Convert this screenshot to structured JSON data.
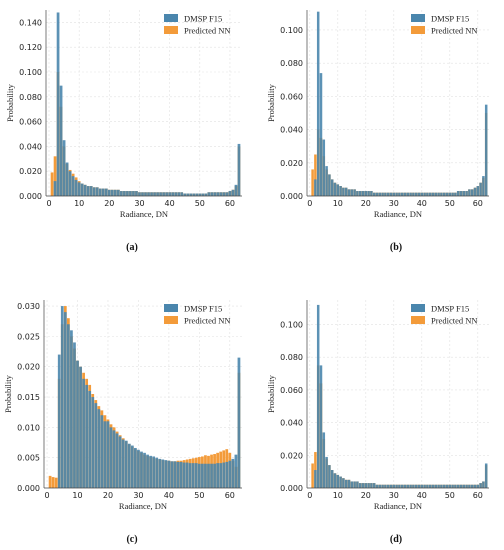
{
  "colors": {
    "series_a": "#4a86ad",
    "series_b": "#f39b3a",
    "overlap": "#4a86ad"
  },
  "chart_data": [
    {
      "panel": "a",
      "caption": "(a)",
      "type": "bar",
      "xlabel": "Radiance, DN",
      "ylabel": "Probability",
      "xlim": [
        -1,
        64
      ],
      "ylim": [
        0,
        0.15
      ],
      "yticks": [
        "0.000",
        "0.020",
        "0.040",
        "0.060",
        "0.080",
        "0.100",
        "0.120",
        "0.140"
      ],
      "ytick_values": [
        0,
        0.02,
        0.04,
        0.06,
        0.08,
        0.1,
        0.12,
        0.14
      ],
      "xticks": [
        0,
        10,
        20,
        30,
        40,
        50,
        60
      ],
      "legend_position": "top-right",
      "series": [
        {
          "name": "DMSP F15",
          "values": [
            0,
            0,
            0.012,
            0.148,
            0.089,
            0.045,
            0.027,
            0.02,
            0.016,
            0.013,
            0.011,
            0.01,
            0.009,
            0.008,
            0.008,
            0.007,
            0.007,
            0.006,
            0.006,
            0.006,
            0.005,
            0.005,
            0.005,
            0.005,
            0.004,
            0.004,
            0.004,
            0.004,
            0.004,
            0.004,
            0.003,
            0.003,
            0.003,
            0.003,
            0.003,
            0.003,
            0.003,
            0.003,
            0.003,
            0.003,
            0.003,
            0.003,
            0.003,
            0.003,
            0.003,
            0.002,
            0.002,
            0.002,
            0.002,
            0.002,
            0.002,
            0.002,
            0.002,
            0.003,
            0.003,
            0.003,
            0.003,
            0.003,
            0.003,
            0.003,
            0.004,
            0.005,
            0.009,
            0.042
          ]
        },
        {
          "name": "Predicted NN",
          "values": [
            0,
            0.019,
            0.032,
            0.1,
            0.072,
            0.04,
            0.026,
            0.021,
            0.018,
            0.015,
            0.012,
            0.01,
            0.009,
            0.008,
            0.008,
            0.007,
            0.007,
            0.006,
            0.006,
            0.006,
            0.005,
            0.005,
            0.005,
            0.005,
            0.004,
            0.004,
            0.004,
            0.004,
            0.004,
            0.004,
            0.003,
            0.003,
            0.003,
            0.003,
            0.003,
            0.003,
            0.003,
            0.003,
            0.003,
            0.003,
            0.003,
            0.003,
            0.003,
            0.003,
            0.003,
            0.002,
            0.002,
            0.002,
            0.002,
            0.002,
            0.002,
            0.002,
            0.002,
            0.003,
            0.003,
            0.003,
            0.003,
            0.003,
            0.003,
            0.003,
            0.004,
            0.005,
            0.008,
            0.04
          ]
        }
      ]
    },
    {
      "panel": "b",
      "caption": "(b)",
      "type": "bar",
      "xlabel": "Radiance, DN",
      "ylabel": "Probability",
      "xlim": [
        -1,
        64
      ],
      "ylim": [
        0,
        0.112
      ],
      "yticks": [
        "0.000",
        "0.020",
        "0.040",
        "0.060",
        "0.080",
        "0.100"
      ],
      "ytick_values": [
        0,
        0.02,
        0.04,
        0.06,
        0.08,
        0.1
      ],
      "xticks": [
        0,
        10,
        20,
        30,
        40,
        50,
        60
      ],
      "legend_position": "top-right",
      "series": [
        {
          "name": "DMSP F15",
          "values": [
            0,
            0,
            0.01,
            0.111,
            0.074,
            0.034,
            0.018,
            0.013,
            0.01,
            0.008,
            0.007,
            0.006,
            0.005,
            0.005,
            0.004,
            0.004,
            0.004,
            0.003,
            0.003,
            0.003,
            0.003,
            0.003,
            0.003,
            0.002,
            0.002,
            0.002,
            0.002,
            0.002,
            0.002,
            0.002,
            0.002,
            0.002,
            0.002,
            0.002,
            0.002,
            0.002,
            0.002,
            0.002,
            0.002,
            0.002,
            0.002,
            0.002,
            0.002,
            0.002,
            0.002,
            0.002,
            0.002,
            0.002,
            0.002,
            0.002,
            0.002,
            0.002,
            0.002,
            0.003,
            0.003,
            0.003,
            0.003,
            0.004,
            0.004,
            0.005,
            0.006,
            0.008,
            0.012,
            0.055
          ]
        },
        {
          "name": "Predicted NN",
          "values": [
            0,
            0.016,
            0.025,
            0.04,
            0.035,
            0.024,
            0.016,
            0.013,
            0.01,
            0.008,
            0.007,
            0.006,
            0.005,
            0.005,
            0.004,
            0.004,
            0.004,
            0.003,
            0.003,
            0.003,
            0.003,
            0.003,
            0.003,
            0.002,
            0.002,
            0.002,
            0.002,
            0.002,
            0.002,
            0.002,
            0.002,
            0.002,
            0.002,
            0.002,
            0.002,
            0.002,
            0.002,
            0.002,
            0.002,
            0.002,
            0.002,
            0.002,
            0.002,
            0.002,
            0.002,
            0.002,
            0.002,
            0.002,
            0.002,
            0.002,
            0.002,
            0.002,
            0.002,
            0.003,
            0.003,
            0.003,
            0.003,
            0.004,
            0.004,
            0.005,
            0.006,
            0.008,
            0.011,
            0.05
          ]
        }
      ]
    },
    {
      "panel": "c",
      "caption": "(c)",
      "type": "bar",
      "xlabel": "Radiance, DN",
      "ylabel": "Probability",
      "xlim": [
        -1,
        64
      ],
      "ylim": [
        0,
        0.031
      ],
      "yticks": [
        "0.000",
        "0.005",
        "0.010",
        "0.015",
        "0.020",
        "0.025",
        "0.030"
      ],
      "ytick_values": [
        0,
        0.005,
        0.01,
        0.015,
        0.02,
        0.025,
        0.03
      ],
      "xticks": [
        0,
        10,
        20,
        30,
        40,
        50,
        60
      ],
      "legend_position": "top-right",
      "series": [
        {
          "name": "DMSP F15",
          "values": [
            0,
            0,
            0,
            0,
            0.022,
            0.03,
            0.029,
            0.027,
            0.026,
            0.024,
            0.021,
            0.02,
            0.018,
            0.017,
            0.016,
            0.015,
            0.014,
            0.013,
            0.012,
            0.011,
            0.011,
            0.01,
            0.0095,
            0.009,
            0.0085,
            0.008,
            0.0078,
            0.0073,
            0.007,
            0.0066,
            0.0063,
            0.006,
            0.0058,
            0.0055,
            0.0053,
            0.0052,
            0.005,
            0.0048,
            0.0047,
            0.0046,
            0.0045,
            0.0044,
            0.0044,
            0.0043,
            0.0043,
            0.0042,
            0.0042,
            0.0041,
            0.0041,
            0.0041,
            0.004,
            0.004,
            0.004,
            0.004,
            0.004,
            0.004,
            0.0041,
            0.0041,
            0.0042,
            0.0043,
            0.0045,
            0.0048,
            0.0055,
            0.0215
          ]
        },
        {
          "name": "Predicted NN",
          "values": [
            0,
            0.002,
            0.0018,
            0.0017,
            0.018,
            0.027,
            0.03,
            0.028,
            0.025,
            0.023,
            0.021,
            0.02,
            0.019,
            0.018,
            0.017,
            0.0155,
            0.0145,
            0.0135,
            0.0128,
            0.012,
            0.0113,
            0.0105,
            0.01,
            0.0093,
            0.0087,
            0.0082,
            0.0077,
            0.0072,
            0.0068,
            0.0064,
            0.0061,
            0.0058,
            0.0055,
            0.0053,
            0.0051,
            0.005,
            0.0048,
            0.0047,
            0.0046,
            0.0045,
            0.0045,
            0.0044,
            0.0044,
            0.0045,
            0.0045,
            0.0046,
            0.0047,
            0.0048,
            0.0049,
            0.005,
            0.0051,
            0.0052,
            0.0054,
            0.0053,
            0.0055,
            0.0056,
            0.0058,
            0.006,
            0.0062,
            0.0064,
            0.0058,
            0.0045,
            0.0035,
            0.019
          ]
        }
      ]
    },
    {
      "panel": "d",
      "caption": "(d)",
      "type": "bar",
      "xlabel": "Radiance, DN",
      "ylabel": "Probability",
      "xlim": [
        -1,
        64
      ],
      "ylim": [
        0,
        0.115
      ],
      "yticks": [
        "0.000",
        "0.020",
        "0.040",
        "0.060",
        "0.080",
        "0.100"
      ],
      "ytick_values": [
        0,
        0.02,
        0.04,
        0.06,
        0.08,
        0.1
      ],
      "xticks": [
        0,
        10,
        20,
        30,
        40,
        50,
        60
      ],
      "legend_position": "top-right",
      "series": [
        {
          "name": "DMSP F15",
          "values": [
            0,
            0,
            0.011,
            0.112,
            0.075,
            0.034,
            0.019,
            0.014,
            0.011,
            0.009,
            0.008,
            0.007,
            0.006,
            0.005,
            0.005,
            0.004,
            0.004,
            0.004,
            0.003,
            0.003,
            0.003,
            0.003,
            0.003,
            0.003,
            0.002,
            0.002,
            0.002,
            0.002,
            0.002,
            0.002,
            0.002,
            0.002,
            0.002,
            0.002,
            0.002,
            0.002,
            0.002,
            0.002,
            0.002,
            0.002,
            0.002,
            0.002,
            0.002,
            0.002,
            0.002,
            0.002,
            0.002,
            0.002,
            0.002,
            0.002,
            0.002,
            0.002,
            0.002,
            0.002,
            0.002,
            0.002,
            0.002,
            0.002,
            0.002,
            0.002,
            0.002,
            0.003,
            0.004,
            0.015
          ]
        },
        {
          "name": "Predicted NN",
          "values": [
            0,
            0.015,
            0.022,
            0.075,
            0.064,
            0.03,
            0.018,
            0.014,
            0.011,
            0.009,
            0.008,
            0.007,
            0.006,
            0.005,
            0.005,
            0.004,
            0.004,
            0.004,
            0.003,
            0.003,
            0.003,
            0.003,
            0.003,
            0.003,
            0.002,
            0.002,
            0.002,
            0.002,
            0.002,
            0.002,
            0.002,
            0.002,
            0.002,
            0.002,
            0.002,
            0.002,
            0.002,
            0.002,
            0.002,
            0.002,
            0.002,
            0.002,
            0.002,
            0.002,
            0.002,
            0.002,
            0.002,
            0.002,
            0.002,
            0.002,
            0.002,
            0.002,
            0.002,
            0.002,
            0.002,
            0.002,
            0.002,
            0.002,
            0.002,
            0.002,
            0.002,
            0.003,
            0.004,
            0.014
          ]
        }
      ]
    }
  ]
}
